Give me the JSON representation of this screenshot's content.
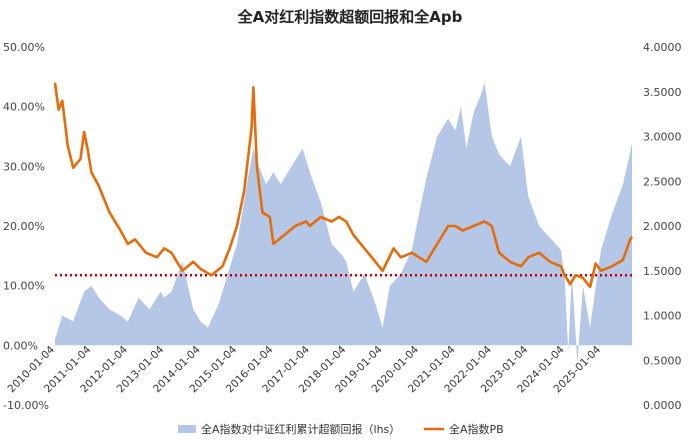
{
  "chart_data": {
    "type": "area",
    "title": "全A对红利指数超额回报和全Apb",
    "x_dates": [
      "2010-01-04",
      "2011-01-04",
      "2012-01-04",
      "2013-01-04",
      "2014-01-04",
      "2015-01-04",
      "2016-01-04",
      "2017-01-04",
      "2018-01-04",
      "2019-01-04",
      "2020-01-04",
      "2021-01-04",
      "2022-01-04",
      "2023-01-04",
      "2024-01-04",
      "2025-01-04"
    ],
    "left_axis": {
      "ticks": [
        "50.00%",
        "40.00%",
        "30.00%",
        "20.00%",
        "10.00%",
        "0.00%",
        "-10.00%"
      ],
      "ylim": [
        -10,
        50
      ]
    },
    "right_axis": {
      "ticks": [
        "4.0000",
        "3.5000",
        "3.0000",
        "2.5000",
        "2.0000",
        "1.5000",
        "1.0000",
        "0.5000",
        "0.0000"
      ],
      "ylim": [
        0,
        4
      ]
    },
    "reference_line": {
      "axis": "right",
      "value": 1.45,
      "color": "#c00000",
      "style": "dotted"
    },
    "series": [
      {
        "name": "全A指数对中证红利累计超额回报（lhs）",
        "axis": "left",
        "kind": "area",
        "color": "#b4c7e7",
        "points": [
          [
            2010.0,
            1
          ],
          [
            2010.2,
            5
          ],
          [
            2010.5,
            4
          ],
          [
            2010.8,
            9
          ],
          [
            2011.0,
            10
          ],
          [
            2011.2,
            8
          ],
          [
            2011.5,
            6
          ],
          [
            2011.8,
            5
          ],
          [
            2012.0,
            4
          ],
          [
            2012.3,
            8
          ],
          [
            2012.6,
            6
          ],
          [
            2012.9,
            9
          ],
          [
            2013.0,
            8
          ],
          [
            2013.2,
            9
          ],
          [
            2013.5,
            14
          ],
          [
            2013.8,
            6
          ],
          [
            2014.0,
            4
          ],
          [
            2014.2,
            3
          ],
          [
            2014.5,
            7
          ],
          [
            2014.8,
            13
          ],
          [
            2015.0,
            17
          ],
          [
            2015.3,
            28
          ],
          [
            2015.45,
            33
          ],
          [
            2015.6,
            30
          ],
          [
            2015.8,
            27
          ],
          [
            2016.0,
            29
          ],
          [
            2016.2,
            27
          ],
          [
            2016.5,
            30
          ],
          [
            2016.8,
            33
          ],
          [
            2017.0,
            29
          ],
          [
            2017.3,
            24
          ],
          [
            2017.6,
            17
          ],
          [
            2017.9,
            15
          ],
          [
            2018.0,
            14
          ],
          [
            2018.2,
            9
          ],
          [
            2018.5,
            12
          ],
          [
            2018.8,
            7
          ],
          [
            2019.0,
            3
          ],
          [
            2019.2,
            10
          ],
          [
            2019.5,
            12
          ],
          [
            2019.8,
            16
          ],
          [
            2020.0,
            22
          ],
          [
            2020.2,
            28
          ],
          [
            2020.5,
            35
          ],
          [
            2020.8,
            38
          ],
          [
            2021.0,
            36
          ],
          [
            2021.15,
            40
          ],
          [
            2021.3,
            33
          ],
          [
            2021.5,
            39
          ],
          [
            2021.7,
            42
          ],
          [
            2021.8,
            44
          ],
          [
            2022.0,
            35
          ],
          [
            2022.2,
            32
          ],
          [
            2022.5,
            30
          ],
          [
            2022.8,
            35
          ],
          [
            2023.0,
            25
          ],
          [
            2023.3,
            20
          ],
          [
            2023.6,
            18
          ],
          [
            2023.9,
            16
          ],
          [
            2024.0,
            11
          ],
          [
            2024.1,
            -1
          ],
          [
            2024.2,
            12
          ],
          [
            2024.35,
            -3
          ],
          [
            2024.5,
            10
          ],
          [
            2024.7,
            3
          ],
          [
            2024.9,
            12
          ],
          [
            2025.0,
            16
          ],
          [
            2025.3,
            22
          ],
          [
            2025.6,
            27
          ],
          [
            2025.75,
            31
          ],
          [
            2025.85,
            34
          ]
        ]
      },
      {
        "name": "全A指数PB",
        "axis": "right",
        "kind": "line",
        "color": "#e46c0a",
        "points": [
          [
            2010.0,
            3.6
          ],
          [
            2010.1,
            3.3
          ],
          [
            2010.2,
            3.4
          ],
          [
            2010.35,
            2.9
          ],
          [
            2010.5,
            2.65
          ],
          [
            2010.7,
            2.75
          ],
          [
            2010.8,
            3.05
          ],
          [
            2010.9,
            2.85
          ],
          [
            2011.0,
            2.6
          ],
          [
            2011.2,
            2.45
          ],
          [
            2011.5,
            2.15
          ],
          [
            2011.8,
            1.95
          ],
          [
            2012.0,
            1.8
          ],
          [
            2012.2,
            1.85
          ],
          [
            2012.5,
            1.7
          ],
          [
            2012.8,
            1.65
          ],
          [
            2013.0,
            1.75
          ],
          [
            2013.2,
            1.7
          ],
          [
            2013.5,
            1.5
          ],
          [
            2013.8,
            1.6
          ],
          [
            2014.0,
            1.52
          ],
          [
            2014.3,
            1.45
          ],
          [
            2014.6,
            1.55
          ],
          [
            2014.8,
            1.75
          ],
          [
            2015.0,
            2.0
          ],
          [
            2015.2,
            2.4
          ],
          [
            2015.4,
            3.1
          ],
          [
            2015.45,
            3.55
          ],
          [
            2015.55,
            2.65
          ],
          [
            2015.7,
            2.15
          ],
          [
            2015.9,
            2.1
          ],
          [
            2016.0,
            1.8
          ],
          [
            2016.3,
            1.9
          ],
          [
            2016.6,
            2.0
          ],
          [
            2016.9,
            2.05
          ],
          [
            2017.0,
            2.0
          ],
          [
            2017.3,
            2.1
          ],
          [
            2017.6,
            2.05
          ],
          [
            2017.8,
            2.1
          ],
          [
            2018.0,
            2.05
          ],
          [
            2018.2,
            1.9
          ],
          [
            2018.5,
            1.75
          ],
          [
            2018.8,
            1.6
          ],
          [
            2019.0,
            1.5
          ],
          [
            2019.3,
            1.75
          ],
          [
            2019.5,
            1.65
          ],
          [
            2019.8,
            1.7
          ],
          [
            2020.0,
            1.65
          ],
          [
            2020.2,
            1.6
          ],
          [
            2020.5,
            1.8
          ],
          [
            2020.8,
            2.0
          ],
          [
            2021.0,
            2.0
          ],
          [
            2021.2,
            1.95
          ],
          [
            2021.5,
            2.0
          ],
          [
            2021.8,
            2.05
          ],
          [
            2022.0,
            2.0
          ],
          [
            2022.2,
            1.7
          ],
          [
            2022.5,
            1.6
          ],
          [
            2022.8,
            1.55
          ],
          [
            2023.0,
            1.65
          ],
          [
            2023.3,
            1.7
          ],
          [
            2023.6,
            1.6
          ],
          [
            2023.9,
            1.55
          ],
          [
            2024.0,
            1.45
          ],
          [
            2024.15,
            1.35
          ],
          [
            2024.3,
            1.45
          ],
          [
            2024.5,
            1.42
          ],
          [
            2024.7,
            1.32
          ],
          [
            2024.85,
            1.58
          ],
          [
            2025.0,
            1.5
          ],
          [
            2025.3,
            1.55
          ],
          [
            2025.6,
            1.62
          ],
          [
            2025.8,
            1.85
          ],
          [
            2025.85,
            1.88
          ]
        ]
      }
    ],
    "legend": [
      "全A指数对中证红利累计超额回报（lhs）",
      "全A指数PB"
    ],
    "legend_position": "bottom",
    "grid": false
  }
}
